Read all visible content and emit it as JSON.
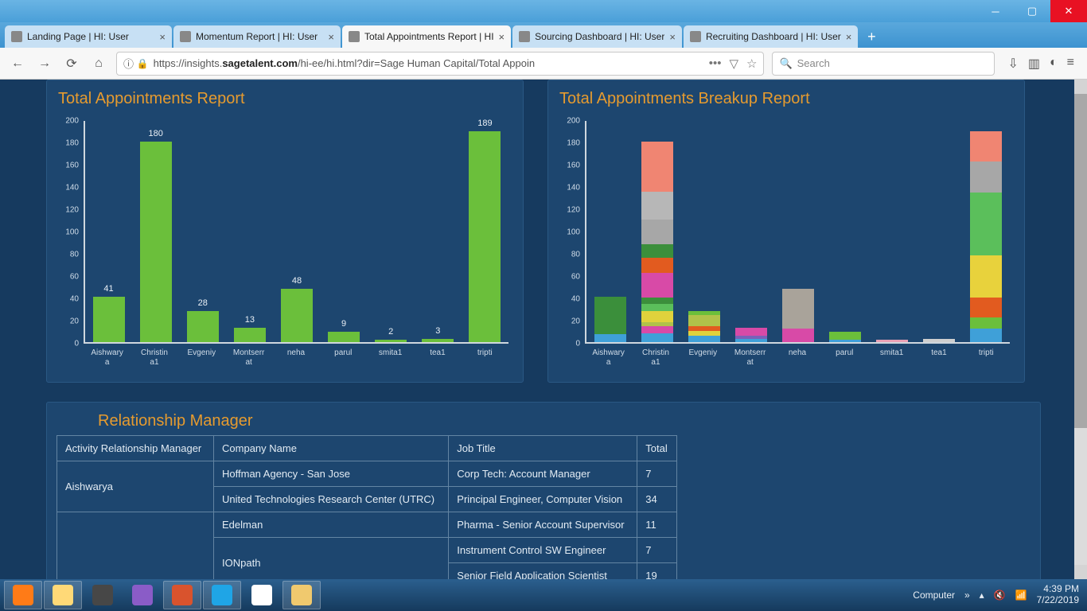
{
  "window": {
    "tabs": [
      {
        "title": "Landing Page | HI: User",
        "active": false
      },
      {
        "title": "Momentum Report | HI: User",
        "active": false
      },
      {
        "title": "Total Appointments Report | HI",
        "active": true
      },
      {
        "title": "Sourcing Dashboard | HI: User",
        "active": false
      },
      {
        "title": "Recruiting Dashboard | HI: User",
        "active": false
      }
    ],
    "url_prefix": "https://insights.",
    "url_host": "sagetalent.com",
    "url_path": "/hi-ee/hi.html?dir=Sage Human Capital/Total Appoin",
    "search_placeholder": "Search"
  },
  "chart1": {
    "title": "Total Appointments Report",
    "ymax": 200,
    "ystep": 20,
    "bar_color": "#6bbf3b",
    "axis_color": "#cfd7de",
    "label_color": "#d0dce8",
    "categories": [
      "Aishwary\na",
      "Christin\na1",
      "Evgeniy",
      "Montserr\nat",
      "neha",
      "parul",
      "smita1",
      "tea1",
      "tripti"
    ],
    "values": [
      41,
      180,
      28,
      13,
      48,
      9,
      2,
      3,
      189
    ]
  },
  "chart2": {
    "title": "Total Appointments Breakup Report",
    "ymax": 200,
    "ystep": 20,
    "categories": [
      "Aishwary\na",
      "Christin\na1",
      "Evgeniy",
      "Montserr\nat",
      "neha",
      "parul",
      "smita1",
      "tea1",
      "tripti"
    ],
    "stacks": [
      [
        {
          "v": 7,
          "c": "#3fa0d8"
        },
        {
          "v": 34,
          "c": "#3b8f3b"
        }
      ],
      [
        {
          "v": 8,
          "c": "#3fa0d8"
        },
        {
          "v": 6,
          "c": "#d84aa7"
        },
        {
          "v": 4,
          "c": "#b0c24a"
        },
        {
          "v": 10,
          "c": "#e0d23c"
        },
        {
          "v": 6,
          "c": "#5bbf5b"
        },
        {
          "v": 6,
          "c": "#3b8f3b"
        },
        {
          "v": 22,
          "c": "#d84aa7"
        },
        {
          "v": 14,
          "c": "#e25b1f"
        },
        {
          "v": 12,
          "c": "#3b8f3b"
        },
        {
          "v": 22,
          "c": "#a7a7a7"
        },
        {
          "v": 25,
          "c": "#b7b7b7"
        },
        {
          "v": 45,
          "c": "#f08572"
        }
      ],
      [
        {
          "v": 6,
          "c": "#3fa0d8"
        },
        {
          "v": 4,
          "c": "#e0d23c"
        },
        {
          "v": 4,
          "c": "#e25b1f"
        },
        {
          "v": 10,
          "c": "#b0c24a"
        },
        {
          "v": 4,
          "c": "#6bbf3b"
        }
      ],
      [
        {
          "v": 3,
          "c": "#3fa0d8"
        },
        {
          "v": 3,
          "c": "#7a61b8"
        },
        {
          "v": 7,
          "c": "#d84aa7"
        }
      ],
      [
        {
          "v": 12,
          "c": "#d84aa7"
        },
        {
          "v": 36,
          "c": "#a9a39a"
        }
      ],
      [
        {
          "v": 2,
          "c": "#3fa0d8"
        },
        {
          "v": 7,
          "c": "#6bbf3b"
        }
      ],
      [
        {
          "v": 2,
          "c": "#e9a1b5"
        }
      ],
      [
        {
          "v": 3,
          "c": "#cfcfcf"
        }
      ],
      [
        {
          "v": 12,
          "c": "#3fa0d8"
        },
        {
          "v": 10,
          "c": "#6bbf3b"
        },
        {
          "v": 18,
          "c": "#e25b1f"
        },
        {
          "v": 38,
          "c": "#e8d23c"
        },
        {
          "v": 56,
          "c": "#5bbf5b"
        },
        {
          "v": 28,
          "c": "#a7a7a7"
        },
        {
          "v": 27,
          "c": "#f08572"
        }
      ]
    ]
  },
  "table": {
    "title": "Relationship Manager",
    "columns": [
      "Activity Relationship Manager",
      "Company Name",
      "Job Title",
      "Total"
    ],
    "groups": [
      {
        "manager": "Aishwarya",
        "rows": [
          {
            "company": "Hoffman Agency - San Jose",
            "job": "Corp Tech: Account Manager",
            "total": "7"
          },
          {
            "company": "United Technologies Research Center (UTRC)",
            "job": "Principal Engineer, Computer Vision",
            "total": "34"
          }
        ]
      },
      {
        "manager": "",
        "rows": [
          {
            "company": "Edelman",
            "job": "Pharma - Senior Account Supervisor",
            "total": "11"
          },
          {
            "company": "IONpath",
            "job": "Instrument Control SW Engineer",
            "total": "7"
          },
          {
            "company": "",
            "job": "Senior Field Application Scientist",
            "total": "19"
          }
        ]
      }
    ]
  },
  "taskbar": {
    "apps": [
      {
        "name": "firefox",
        "c": "#ff7b17",
        "active": true
      },
      {
        "name": "explorer",
        "c": "#ffd977",
        "active": true
      },
      {
        "name": "sublime",
        "c": "#474747",
        "active": false
      },
      {
        "name": "viber",
        "c": "#8a5cc7",
        "active": false
      },
      {
        "name": "powerpoint",
        "c": "#d9532d",
        "active": true
      },
      {
        "name": "skype",
        "c": "#1fa5e6",
        "active": true
      },
      {
        "name": "chrome",
        "c": "#ffffff",
        "active": false
      },
      {
        "name": "outlook",
        "c": "#f0c96e",
        "active": true
      }
    ],
    "label": "Computer",
    "time": "4:39 PM",
    "date": "7/22/2019"
  }
}
